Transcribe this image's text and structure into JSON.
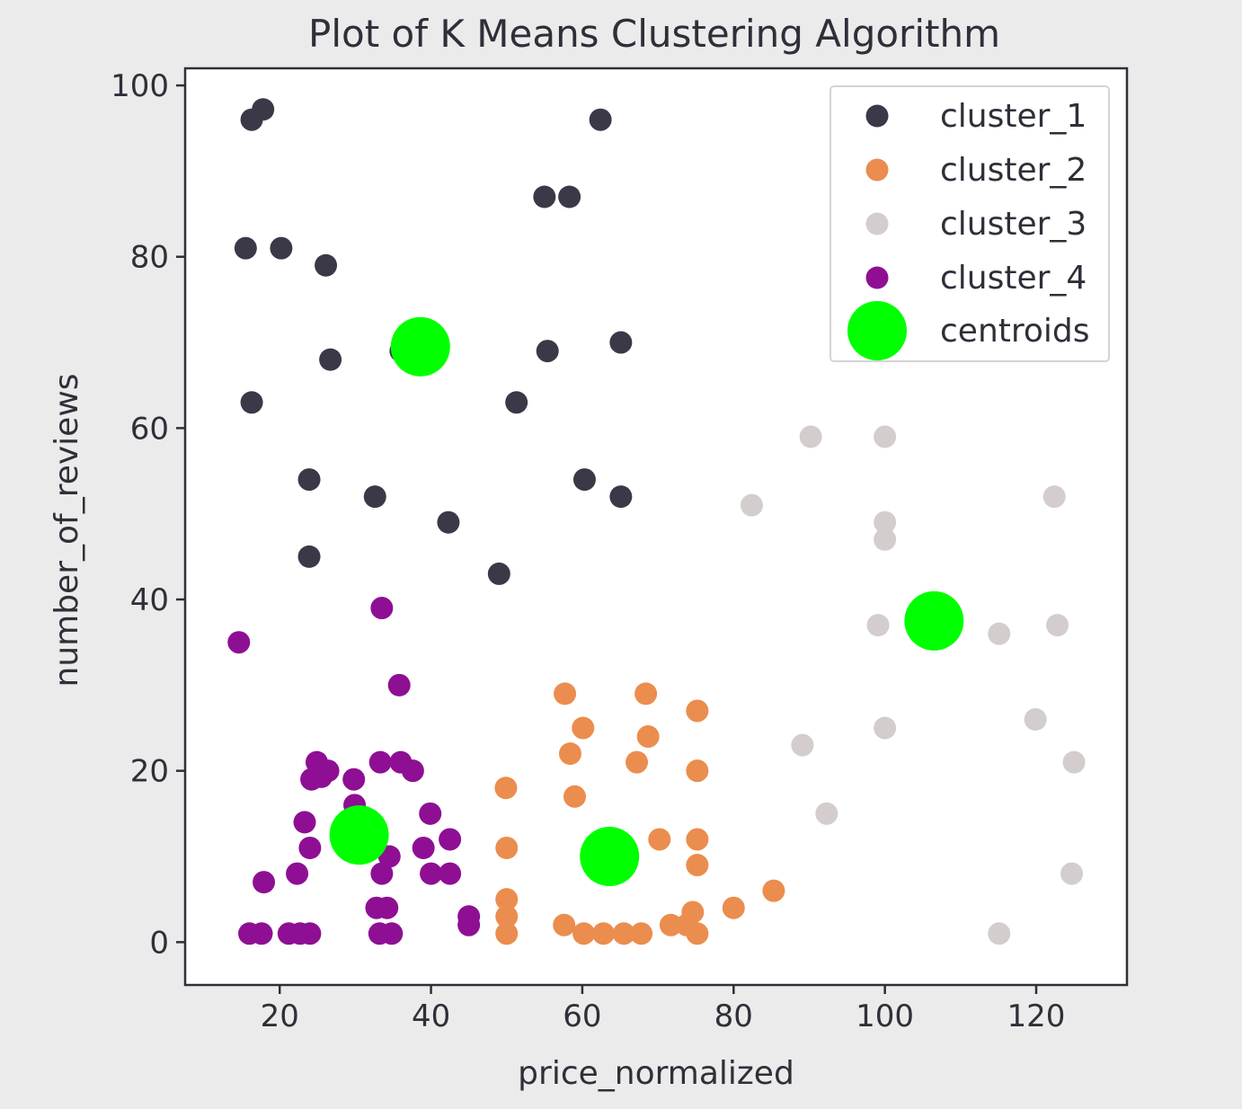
{
  "chart_data": {
    "type": "scatter",
    "title": "Plot of K Means Clustering Algorithm",
    "xlabel": "price_normalized",
    "ylabel": "number_of_reviews",
    "xlim": [
      7.5,
      132
    ],
    "ylim": [
      -5,
      102
    ],
    "xticks": [
      "20",
      "40",
      "60",
      "80",
      "100",
      "120"
    ],
    "yticks": [
      "0",
      "20",
      "40",
      "60",
      "80",
      "100"
    ],
    "xtick_values": [
      20,
      40,
      60,
      80,
      100,
      120
    ],
    "ytick_values": [
      0,
      20,
      40,
      60,
      80,
      100
    ],
    "grid": false,
    "legend_position": "top-right",
    "series": [
      {
        "name": "cluster_1",
        "color": "#3b3948",
        "points": [
          [
            16.3,
            96
          ],
          [
            17.8,
            97.2
          ],
          [
            62.4,
            96
          ],
          [
            55,
            87
          ],
          [
            58.3,
            87
          ],
          [
            15.5,
            81
          ],
          [
            20.2,
            81
          ],
          [
            26.1,
            79
          ],
          [
            26.7,
            68
          ],
          [
            36,
            69
          ],
          [
            55.4,
            69
          ],
          [
            65.1,
            70
          ],
          [
            16.3,
            63
          ],
          [
            51.3,
            63
          ],
          [
            23.9,
            54
          ],
          [
            32.6,
            52
          ],
          [
            60.3,
            54
          ],
          [
            65.1,
            52
          ],
          [
            42.3,
            49
          ],
          [
            23.9,
            45
          ],
          [
            49,
            43
          ]
        ]
      },
      {
        "name": "cluster_2",
        "color": "#eb8d4e",
        "points": [
          [
            57.7,
            29
          ],
          [
            68.4,
            29
          ],
          [
            75.2,
            27
          ],
          [
            60.1,
            25
          ],
          [
            68.7,
            24
          ],
          [
            58.4,
            22
          ],
          [
            67.2,
            21
          ],
          [
            75.2,
            20
          ],
          [
            49.9,
            18
          ],
          [
            59,
            17
          ],
          [
            50,
            11
          ],
          [
            70.2,
            12
          ],
          [
            75.2,
            12
          ],
          [
            75.2,
            9
          ],
          [
            85.3,
            6
          ],
          [
            80,
            4
          ],
          [
            50,
            5
          ],
          [
            50,
            3
          ],
          [
            50,
            1
          ],
          [
            57.6,
            2
          ],
          [
            60.2,
            1
          ],
          [
            62.8,
            1
          ],
          [
            65.5,
            1
          ],
          [
            67.8,
            1
          ],
          [
            71.7,
            2
          ],
          [
            73.8,
            2
          ],
          [
            74.6,
            3.5
          ],
          [
            75.2,
            1
          ]
        ]
      },
      {
        "name": "cluster_3",
        "color": "#d4cdcd",
        "points": [
          [
            90.2,
            59
          ],
          [
            100,
            59
          ],
          [
            82.4,
            51
          ],
          [
            100,
            49
          ],
          [
            100,
            47
          ],
          [
            122.4,
            52
          ],
          [
            99.1,
            37
          ],
          [
            115.1,
            36
          ],
          [
            122.8,
            37
          ],
          [
            100,
            25
          ],
          [
            119.9,
            26
          ],
          [
            89.1,
            23
          ],
          [
            125,
            21
          ],
          [
            92.3,
            15
          ],
          [
            124.7,
            8
          ],
          [
            115.1,
            1
          ]
        ]
      },
      {
        "name": "cluster_4",
        "color": "#8e0f93",
        "points": [
          [
            14.6,
            35
          ],
          [
            33.5,
            39
          ],
          [
            35.8,
            30
          ],
          [
            24.9,
            21
          ],
          [
            26.4,
            20
          ],
          [
            33.3,
            21
          ],
          [
            36,
            21
          ],
          [
            37.6,
            20
          ],
          [
            24.2,
            19
          ],
          [
            25.5,
            19.3
          ],
          [
            29.8,
            19
          ],
          [
            23.3,
            14
          ],
          [
            29.9,
            16
          ],
          [
            39.9,
            15
          ],
          [
            24,
            11
          ],
          [
            39,
            11
          ],
          [
            42.5,
            12
          ],
          [
            34.5,
            10
          ],
          [
            33.5,
            8
          ],
          [
            22.3,
            8
          ],
          [
            17.9,
            7
          ],
          [
            40,
            8
          ],
          [
            42.5,
            8
          ],
          [
            32.8,
            4
          ],
          [
            34.2,
            4
          ],
          [
            45,
            3
          ],
          [
            45,
            2
          ],
          [
            16,
            1
          ],
          [
            17.6,
            1
          ],
          [
            21.2,
            1
          ],
          [
            22.7,
            1
          ],
          [
            24,
            1
          ],
          [
            33.2,
            1
          ],
          [
            34.8,
            1
          ]
        ]
      }
    ],
    "centroids": {
      "name": "centroids",
      "color": "#00ff00",
      "points": [
        [
          38.6,
          69.5
        ],
        [
          30.5,
          12.5
        ],
        [
          63.6,
          10
        ],
        [
          106.5,
          37.5
        ]
      ]
    }
  }
}
